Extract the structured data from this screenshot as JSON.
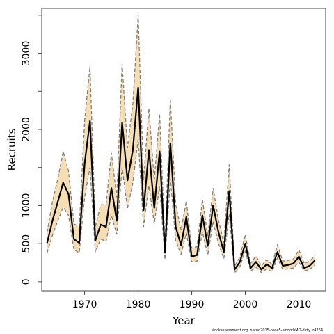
{
  "chart_data": {
    "type": "line",
    "title": "",
    "xlabel": "Year",
    "ylabel": "Recruits",
    "xlim": [
      1962,
      2015
    ],
    "ylim": [
      -120,
      3590
    ],
    "xticks": [
      1970,
      1980,
      1990,
      2000,
      2010
    ],
    "yticks": [
      0,
      500,
      1000,
      2000,
      3000
    ],
    "grid": false,
    "legend": "none",
    "colors": {
      "band_fill": "#f5deb3",
      "band_edge": "#808080",
      "line": "#000000",
      "box": "#444444"
    },
    "x": [
      1963,
      1964,
      1965,
      1966,
      1967,
      1968,
      1969,
      1970,
      1971,
      1972,
      1973,
      1974,
      1975,
      1976,
      1977,
      1978,
      1979,
      1980,
      1981,
      1982,
      1983,
      1984,
      1985,
      1986,
      1987,
      1988,
      1989,
      1990,
      1991,
      1992,
      1993,
      1994,
      1995,
      1996,
      1997,
      1998,
      1999,
      2000,
      2001,
      2002,
      2003,
      2004,
      2005,
      2006,
      2007,
      2008,
      2009,
      2010,
      2011,
      2012,
      2013
    ],
    "series": [
      {
        "role": "estimate",
        "values": [
          510,
          800,
          1050,
          1300,
          1150,
          560,
          510,
          1550,
          2110,
          540,
          750,
          720,
          1230,
          800,
          2090,
          1330,
          1730,
          2550,
          940,
          1730,
          970,
          1710,
          380,
          1820,
          720,
          480,
          850,
          330,
          350,
          870,
          470,
          1000,
          650,
          390,
          1190,
          160,
          260,
          500,
          180,
          260,
          160,
          230,
          180,
          390,
          210,
          220,
          240,
          330,
          180,
          210,
          280
        ]
      },
      {
        "role": "upper",
        "values": [
          650,
          1050,
          1350,
          1710,
          1450,
          760,
          720,
          2110,
          2830,
          720,
          1010,
          1010,
          1690,
          1110,
          2860,
          1760,
          2340,
          3500,
          1330,
          2280,
          1330,
          2200,
          510,
          2400,
          1010,
          680,
          1060,
          440,
          460,
          1080,
          600,
          1230,
          810,
          510,
          1540,
          200,
          330,
          620,
          240,
          340,
          210,
          290,
          230,
          480,
          270,
          280,
          300,
          420,
          240,
          270,
          340
        ]
      },
      {
        "role": "lower",
        "values": [
          380,
          610,
          800,
          980,
          870,
          420,
          380,
          1110,
          1500,
          390,
          560,
          530,
          870,
          620,
          1500,
          960,
          1300,
          1870,
          720,
          1260,
          760,
          1260,
          290,
          1350,
          540,
          360,
          640,
          260,
          270,
          650,
          350,
          790,
          500,
          300,
          890,
          110,
          200,
          400,
          140,
          190,
          120,
          170,
          130,
          310,
          160,
          170,
          180,
          260,
          140,
          160,
          220
        ]
      }
    ]
  },
  "footer": {
    "note": "stockassessment.org, nscod2015-base5-smoothMO-dirty, r4264"
  }
}
